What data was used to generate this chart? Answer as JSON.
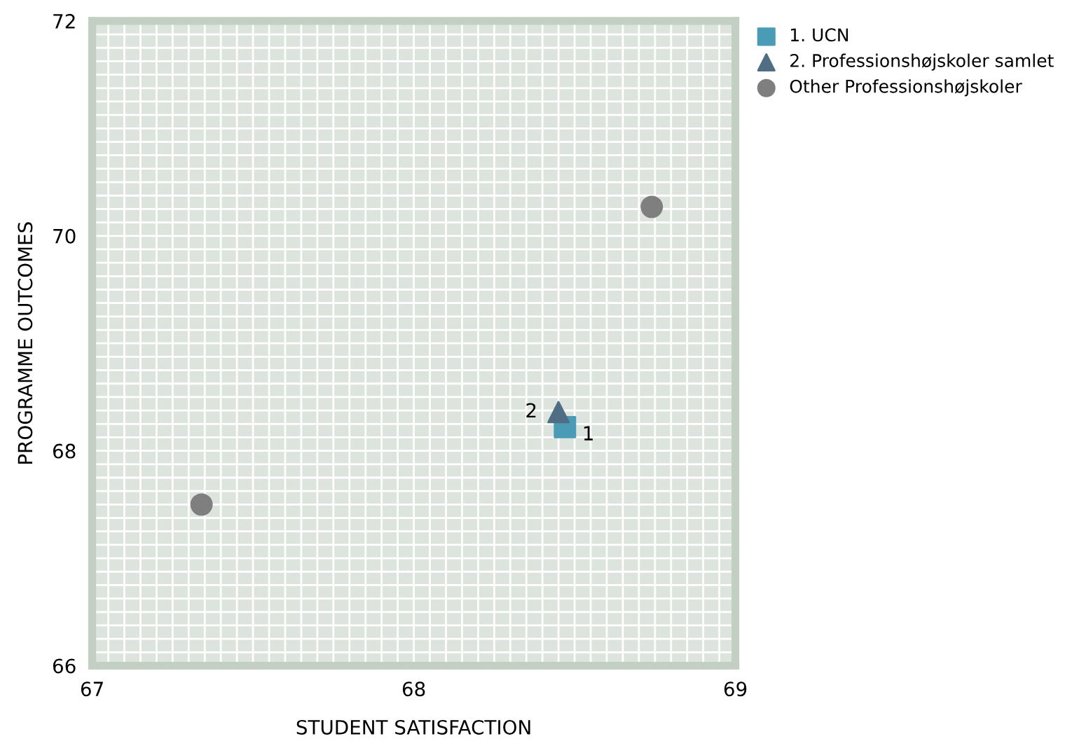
{
  "chart_data": {
    "type": "scatter",
    "xlabel": "STUDENT SATISFACTION",
    "ylabel": "PROGRAMME OUTCOMES",
    "xlim": [
      67,
      69
    ],
    "xticks": [
      67,
      68,
      69
    ],
    "ylim": [
      66,
      72
    ],
    "yticks": [
      66,
      68,
      70,
      72
    ],
    "grid": true,
    "legend": "top right",
    "series": [
      {
        "name": "1. UCN",
        "color": "#4a9bb5",
        "marker": "square",
        "x": [
          68.47
        ],
        "values": [
          68.22
        ]
      },
      {
        "name": "2. Professionshøjskoler samlet",
        "color": "#4f6e84",
        "marker": "triangle",
        "x": [
          68.45
        ],
        "values": [
          68.36
        ]
      },
      {
        "name": "Other Professionshøjskoler",
        "color": "#7f7f7f",
        "marker": "circle",
        "x": [
          67.34,
          68.74
        ],
        "values": [
          67.5,
          70.27
        ]
      }
    ],
    "annotations": [
      {
        "text": "1",
        "x": 68.47,
        "y": 68.22
      },
      {
        "text": "2",
        "x": 68.45,
        "y": 68.36
      }
    ]
  }
}
